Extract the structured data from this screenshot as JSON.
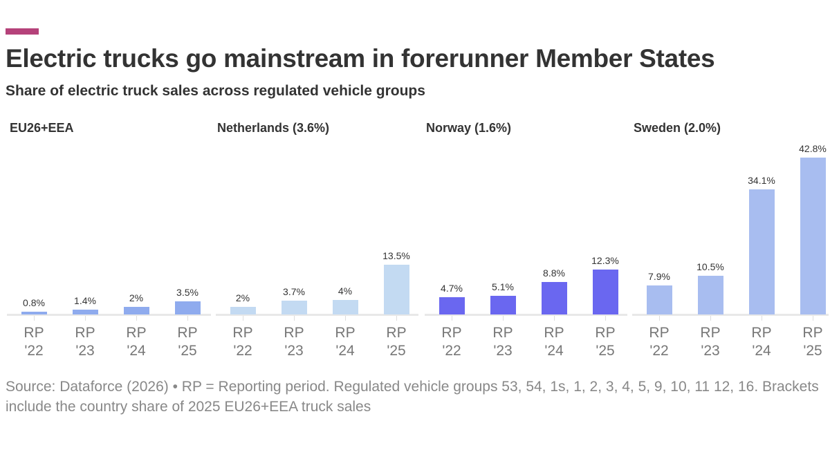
{
  "header": {
    "title": "Electric trucks go mainstream in forerunner Member States",
    "subtitle": "Share of electric truck sales across regulated vehicle groups",
    "accent_color": "#b5427a"
  },
  "chart_data": {
    "type": "bar",
    "title": "Electric trucks go mainstream in forerunner Member States",
    "subtitle": "Share of electric truck sales across regulated vehicle groups",
    "categories": [
      "RP '22",
      "RP '23",
      "RP '24",
      "RP '25"
    ],
    "unit": "%",
    "panels": [
      {
        "name": "EU26+EEA",
        "color": "#8fabee",
        "values": [
          0.8,
          1.4,
          2,
          3.5
        ],
        "labels": [
          "0.8%",
          "1.4%",
          "2%",
          "3.5%"
        ]
      },
      {
        "name": "Netherlands (3.6%)",
        "color": "#c3daf2",
        "values": [
          2,
          3.7,
          4,
          13.5
        ],
        "labels": [
          "2%",
          "3.7%",
          "4%",
          "13.5%"
        ]
      },
      {
        "name": "Norway (1.6%)",
        "color": "#6a67f0",
        "values": [
          4.7,
          5.1,
          8.8,
          12.3
        ],
        "labels": [
          "4.7%",
          "5.1%",
          "8.8%",
          "12.3%"
        ]
      },
      {
        "name": "Sweden (2.0%)",
        "color": "#a8bdf0",
        "values": [
          7.9,
          10.5,
          34.1,
          42.8
        ],
        "labels": [
          "7.9%",
          "10.5%",
          "34.1%",
          "42.8%"
        ]
      }
    ],
    "xlabels": [
      [
        "RP",
        "'22"
      ],
      [
        "RP",
        "'23"
      ],
      [
        "RP",
        "'24"
      ],
      [
        "RP",
        "'25"
      ]
    ],
    "grid": false,
    "legend": "none"
  },
  "footer": {
    "source": "Source: Dataforce (2026) • RP = Reporting period. Regulated vehicle groups 53, 54, 1s, 1, 2, 3, 4, 5, 9, 10, 11 12, 16. Brackets include the country share of 2025 EU26+EEA truck sales"
  }
}
